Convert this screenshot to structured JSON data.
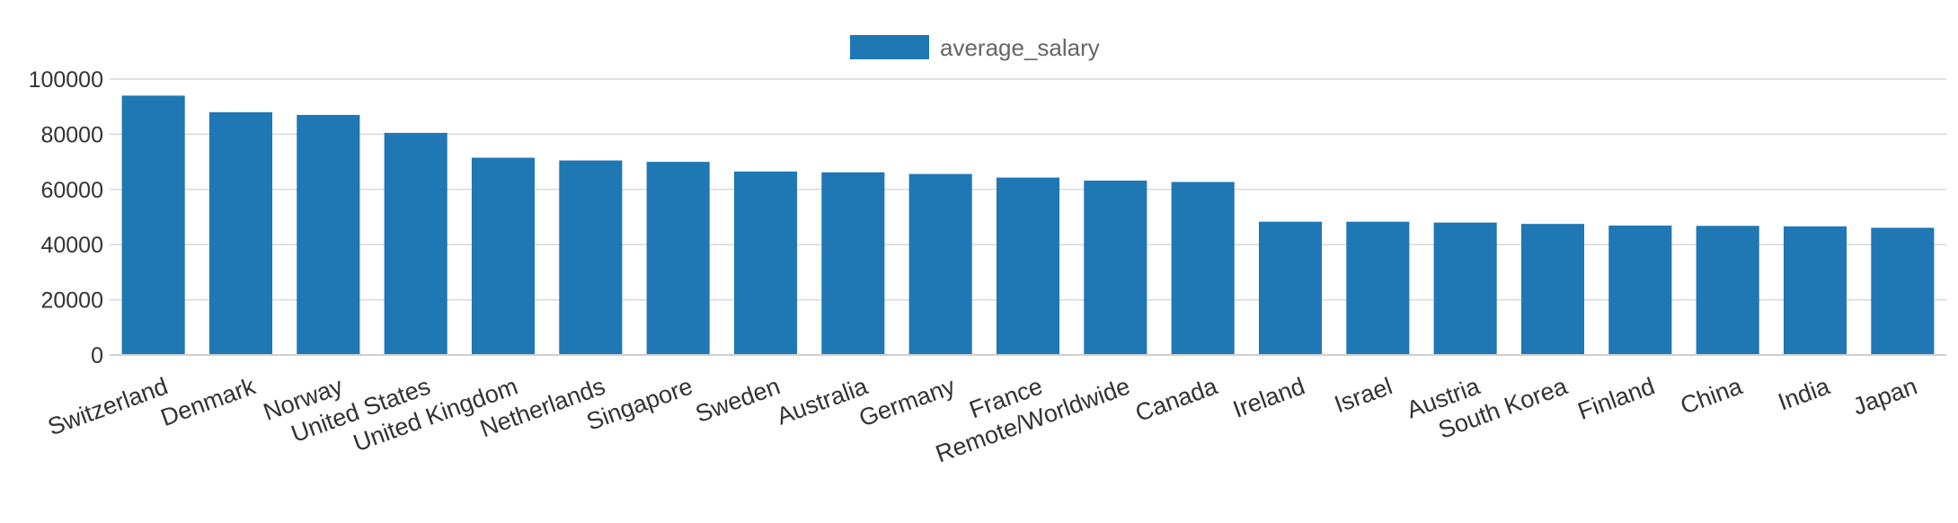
{
  "chart_data": {
    "type": "bar",
    "title": "",
    "xlabel": "",
    "ylabel": "",
    "ylim": [
      0,
      100000
    ],
    "yticks": [
      0,
      20000,
      40000,
      60000,
      80000,
      100000
    ],
    "grid": true,
    "legend_position": "top-center",
    "categories": [
      "Switzerland",
      "Denmark",
      "Norway",
      "United States",
      "United Kingdom",
      "Netherlands",
      "Singapore",
      "Sweden",
      "Australia",
      "Germany",
      "France",
      "Remote/Worldwide",
      "Canada",
      "Ireland",
      "Israel",
      "Austria",
      "South Korea",
      "Finland",
      "China",
      "India",
      "Japan"
    ],
    "series": [
      {
        "name": "average_salary",
        "color": "#1f77b4",
        "values": [
          94000,
          88000,
          87000,
          80500,
          71500,
          70500,
          70000,
          66500,
          66200,
          65600,
          64300,
          63200,
          62700,
          48300,
          48300,
          48000,
          47500,
          46900,
          46800,
          46600,
          46100
        ]
      }
    ]
  }
}
